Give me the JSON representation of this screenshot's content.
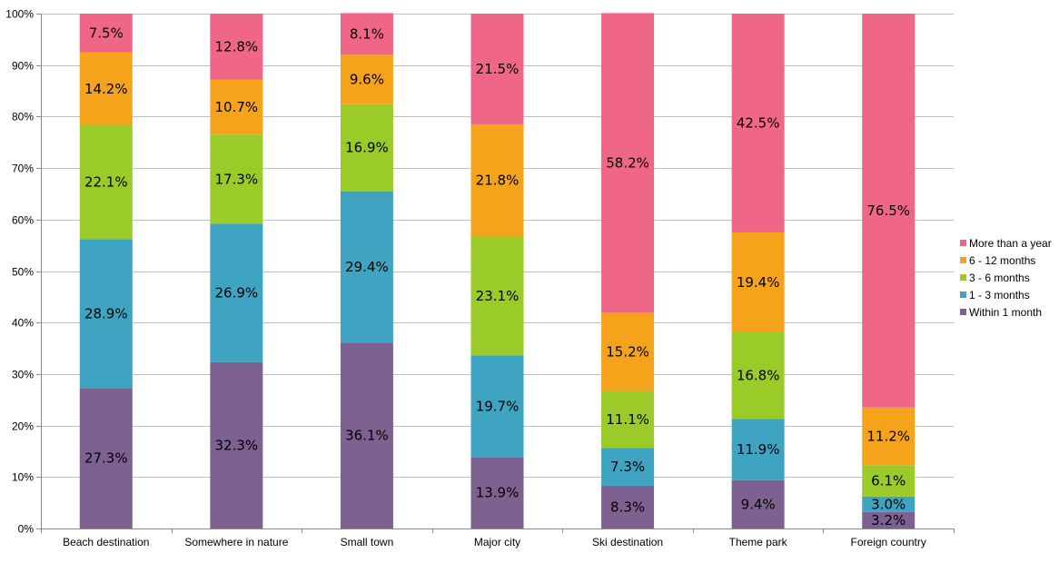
{
  "chart_data": {
    "type": "bar",
    "stacked": true,
    "categories": [
      "Beach destination",
      "Somewhere in nature",
      "Small town",
      "Major city",
      "Ski destination",
      "Theme park",
      "Foreign country"
    ],
    "series": [
      {
        "name": "Within 1 month",
        "color": "#7d6190",
        "values": [
          27.3,
          32.3,
          36.1,
          13.9,
          8.3,
          9.4,
          3.2
        ]
      },
      {
        "name": "1 - 3 months",
        "color": "#3fa3c2",
        "values": [
          28.9,
          26.9,
          29.4,
          19.7,
          7.3,
          11.9,
          3.0
        ]
      },
      {
        "name": "3 - 6 months",
        "color": "#9acb28",
        "values": [
          22.1,
          17.3,
          16.9,
          23.1,
          11.1,
          16.8,
          6.1
        ]
      },
      {
        "name": "6 - 12 months",
        "color": "#f5a31b",
        "values": [
          14.2,
          10.7,
          9.6,
          21.8,
          15.2,
          19.4,
          11.2
        ]
      },
      {
        "name": "More than a year",
        "color": "#f06687",
        "values": [
          7.5,
          12.8,
          8.1,
          21.5,
          58.2,
          42.5,
          76.5
        ]
      }
    ],
    "data_labels": [
      [
        "27.3%",
        "32.3%",
        "36.1%",
        "13.9%",
        "8.3%",
        "9.4%",
        "3.2%"
      ],
      [
        "28.9%",
        "26.9%",
        "29.4%",
        "19.7%",
        "7.3%",
        "11.9%",
        "3.0%"
      ],
      [
        "22.1%",
        "17.3%",
        "16.9%",
        "23.1%",
        "11.1%",
        "16.8%",
        "6.1%"
      ],
      [
        "14.2%",
        "10.7%",
        "9.6%",
        "21.8%",
        "15.2%",
        "19.4%",
        "11.2%"
      ],
      [
        "7.5%",
        "12.8%",
        "8.1%",
        "21.5%",
        "58.2%",
        "42.5%",
        "76.5%"
      ]
    ],
    "y_ticks": [
      "0%",
      "10%",
      "20%",
      "30%",
      "40%",
      "50%",
      "60%",
      "70%",
      "80%",
      "90%",
      "100%"
    ],
    "ylim": [
      0,
      100
    ],
    "grid": true,
    "legend_position": "right",
    "title": "",
    "xlabel": "",
    "ylabel": ""
  }
}
